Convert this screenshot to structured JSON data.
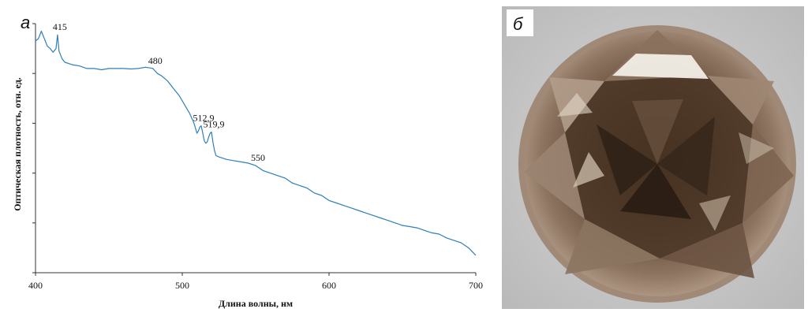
{
  "panels": {
    "left_label": "а",
    "right_label": "б"
  },
  "chart_data": {
    "type": "line",
    "xlabel": "Длина волны, нм",
    "ylabel": "Оптическая плотность, отн. ед.",
    "xlim": [
      400,
      700
    ],
    "ylim": [
      0,
      1
    ],
    "xticks": [
      400,
      500,
      600,
      700
    ],
    "y_tick_labels_shown": false,
    "grid": false,
    "line_color": "#2f7fb8",
    "series": [
      {
        "x": [
          400,
          402,
          404,
          406,
          408,
          410,
          412,
          414,
          415,
          416,
          418,
          420,
          425,
          430,
          435,
          440,
          445,
          450,
          455,
          460,
          465,
          470,
          475,
          478,
          480,
          483,
          486,
          490,
          494,
          498,
          502,
          505,
          508,
          510,
          511,
          512,
          512.9,
          514,
          515,
          516,
          517,
          518,
          519,
          519.9,
          521,
          522,
          523,
          525,
          530,
          535,
          540,
          545,
          550,
          555,
          560,
          565,
          570,
          575,
          580,
          585,
          590,
          595,
          600,
          605,
          610,
          615,
          620,
          625,
          630,
          635,
          640,
          645,
          650,
          655,
          660,
          665,
          670,
          675,
          680,
          685,
          690,
          695,
          700
        ],
        "y": [
          0.93,
          0.94,
          0.97,
          0.94,
          0.91,
          0.9,
          0.885,
          0.9,
          0.955,
          0.89,
          0.86,
          0.845,
          0.835,
          0.83,
          0.82,
          0.82,
          0.815,
          0.82,
          0.82,
          0.82,
          0.818,
          0.82,
          0.825,
          0.822,
          0.82,
          0.8,
          0.79,
          0.77,
          0.74,
          0.71,
          0.67,
          0.64,
          0.6,
          0.56,
          0.57,
          0.585,
          0.59,
          0.56,
          0.53,
          0.52,
          0.525,
          0.545,
          0.56,
          0.565,
          0.52,
          0.49,
          0.47,
          0.465,
          0.455,
          0.45,
          0.445,
          0.44,
          0.43,
          0.41,
          0.4,
          0.39,
          0.38,
          0.36,
          0.35,
          0.34,
          0.32,
          0.31,
          0.29,
          0.28,
          0.27,
          0.26,
          0.25,
          0.24,
          0.23,
          0.22,
          0.21,
          0.2,
          0.19,
          0.185,
          0.18,
          0.17,
          0.16,
          0.155,
          0.14,
          0.13,
          0.12,
          0.1,
          0.07
        ]
      }
    ],
    "annotations": [
      {
        "text": "415",
        "x": 415,
        "y": 0.955
      },
      {
        "text": "480",
        "x": 480,
        "y": 0.82
      },
      {
        "text": "512,9",
        "x": 512.9,
        "y": 0.59
      },
      {
        "text": "519,9",
        "x": 519.9,
        "y": 0.565
      },
      {
        "text": "550",
        "x": 550,
        "y": 0.43
      }
    ]
  },
  "photo": {
    "colors": {
      "background": "#c9c9c9",
      "stone_dark": "#3a2a1d",
      "stone_mid": "#7a5e47",
      "stone_light": "#b7a08c",
      "highlight": "#f1ede6"
    }
  }
}
